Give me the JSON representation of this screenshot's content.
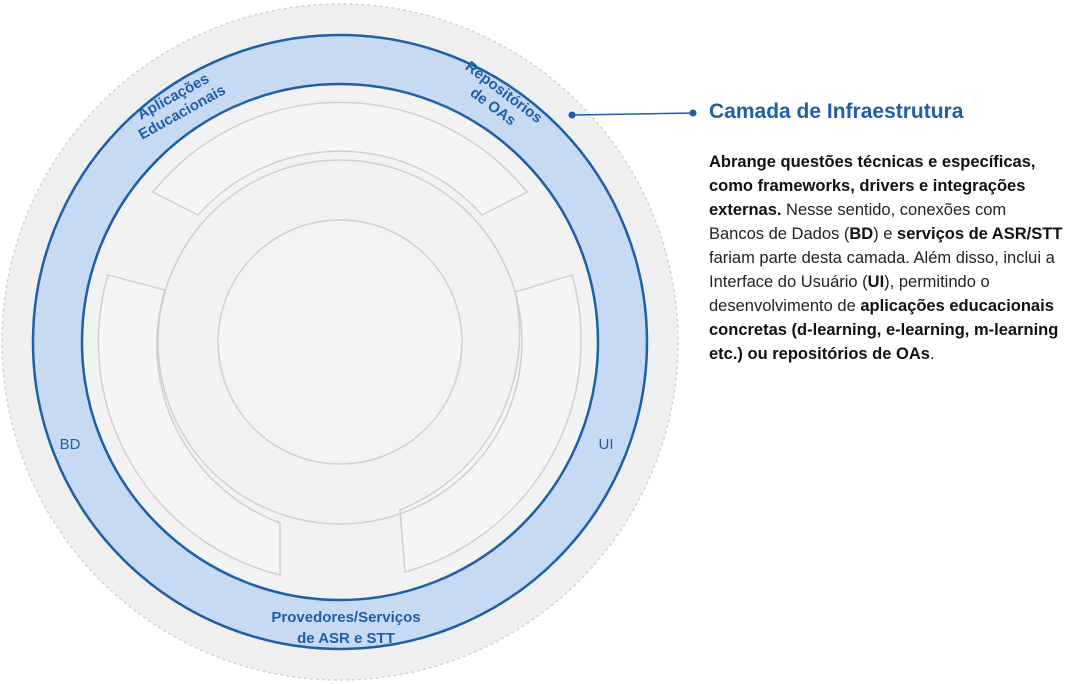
{
  "colors": {
    "accent": "#1f5fa6",
    "ring_fill": "#c8d9f4",
    "outer_halo": "#efefef",
    "inner_fill": "#f2f2f2",
    "segment_stroke": "#cfcfcf"
  },
  "ring_labels": {
    "aplicacoes_line1": "Aplicações",
    "aplicacoes_line2": "Educacionais",
    "repositorios_line1": "Repositórios",
    "repositorios_line2": "de OAs",
    "bd": "BD",
    "ui": "UI",
    "provedores_line1": "Provedores/Serviços",
    "provedores_line2": "de ASR e STT"
  },
  "callout": {
    "title": "Camada de Infraestrutura",
    "body": {
      "p1": "Abrange questões técnicas e específicas, como frameworks, drivers e integrações externas.",
      "p2": " Nesse sentido, conexões com Bancos de Dados (",
      "p3": "BD",
      "p4": ") e ",
      "p5": "serviços de ASR/STT",
      "p6": " fariam parte desta camada. Além disso, inclui a Interface do Usuário (",
      "p7": "UI",
      "p8": "), permitindo o desenvolvimento de ",
      "p9": "aplicações educacionais concretas (d-learning, e-learning, m-learning etc.) ou repositórios de OAs",
      "p10": "."
    }
  }
}
